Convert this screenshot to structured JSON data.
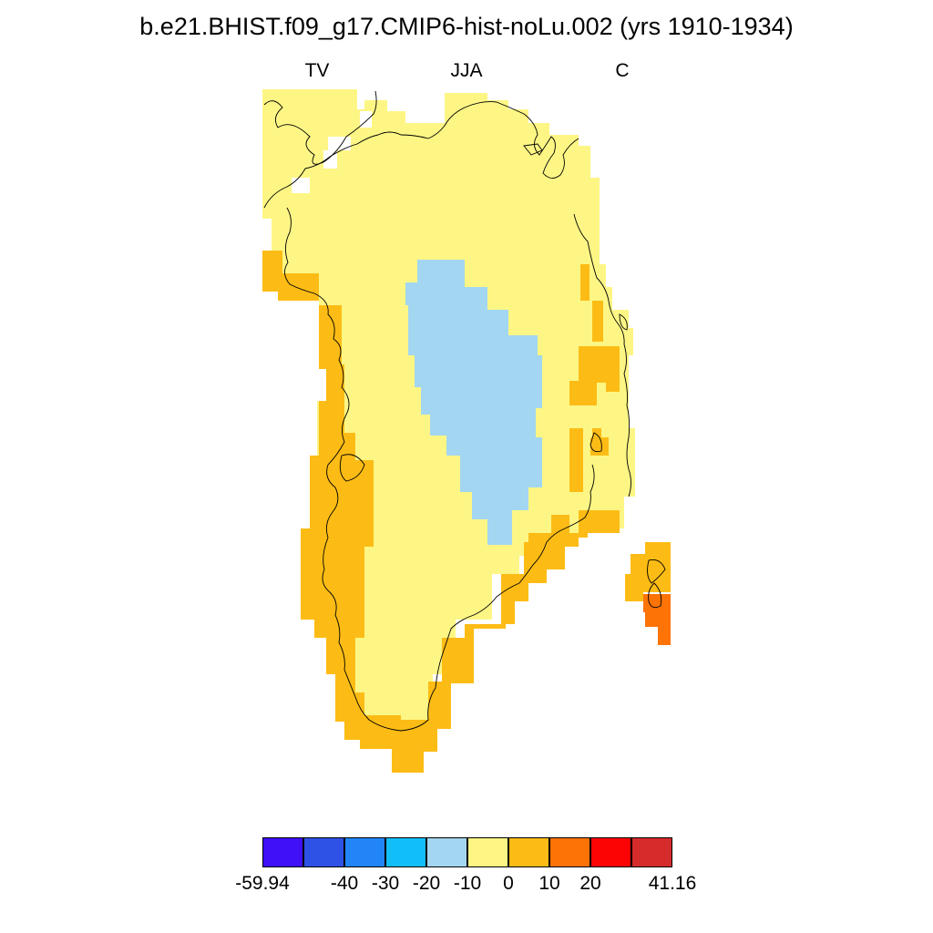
{
  "title": "b.e21.BHIST.f09_g17.CMIP6-hist-noLu.002 (yrs 1910-1934)",
  "subtitle_left": "TV",
  "subtitle_center": "JJA",
  "subtitle_right": "C",
  "colorbar": {
    "colors": [
      "#3f10f8",
      "#2f52e6",
      "#2185f8",
      "#12bef8",
      "#a3d6f0",
      "#fdf685",
      "#fdbc15",
      "#fd7306",
      "#fc0404",
      "#d52b2b"
    ],
    "labels": [
      "-59.94",
      "-40",
      "-30",
      "-20",
      "-10",
      "0",
      "10",
      "20",
      "41.16"
    ]
  },
  "regions": [
    {
      "name": "region-yellow",
      "value_bin": "-10 to 0",
      "color": "#fdf685"
    },
    {
      "name": "region-orange",
      "value_bin": "0 to 10",
      "color": "#fdbc15"
    },
    {
      "name": "region-blue",
      "value_bin": "-20 to -10",
      "color": "#a3d6f0"
    },
    {
      "name": "region-dark-orange",
      "value_bin": "10 to 20",
      "color": "#fd7306"
    }
  ]
}
